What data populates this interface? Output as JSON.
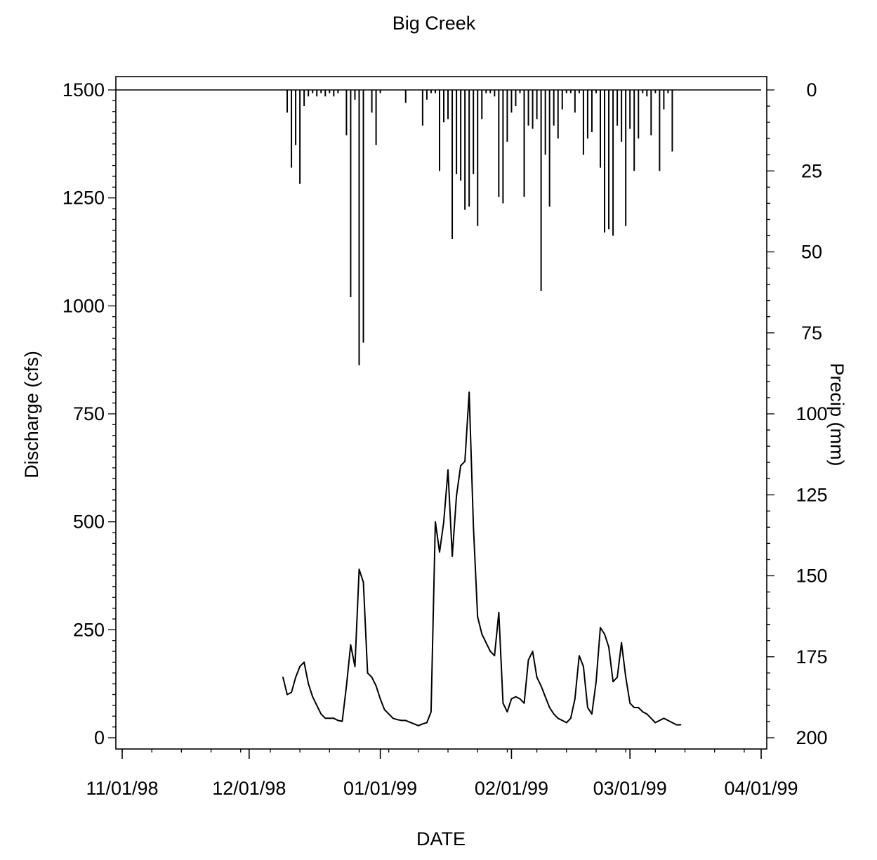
{
  "chart_data": {
    "type": "line",
    "title": "Big Creek",
    "xlabel": "DATE",
    "ylabel": "Discharge (cfs)",
    "y2label": "Precip (mm)",
    "xlim": [
      "1998-11-01",
      "1999-04-01"
    ],
    "ylim": [
      0,
      1500
    ],
    "y2lim": [
      200,
      0
    ],
    "y2_inverted": true,
    "grid": false,
    "x_ticks": [
      "11/01/98",
      "12/01/98",
      "01/01/99",
      "02/01/99",
      "03/01/99",
      "04/01/99"
    ],
    "x_tick_dates": [
      "1998-11-01",
      "1998-12-01",
      "1999-01-01",
      "1999-02-01",
      "1999-03-01",
      "1999-04-01"
    ],
    "y_ticks": [
      0,
      250,
      500,
      750,
      1000,
      1250,
      1500
    ],
    "y2_ticks": [
      0,
      25,
      50,
      75,
      100,
      125,
      150,
      175,
      200
    ],
    "series": [
      {
        "name": "Discharge (cfs)",
        "type": "line",
        "axis": "left",
        "color": "#000000",
        "dates": [
          "1998-12-09",
          "1998-12-10",
          "1998-12-11",
          "1998-12-12",
          "1998-12-13",
          "1998-12-14",
          "1998-12-15",
          "1998-12-16",
          "1998-12-17",
          "1998-12-18",
          "1998-12-19",
          "1998-12-20",
          "1998-12-21",
          "1998-12-22",
          "1998-12-23",
          "1998-12-24",
          "1998-12-25",
          "1998-12-26",
          "1998-12-27",
          "1998-12-28",
          "1998-12-29",
          "1998-12-30",
          "1998-12-31",
          "1999-01-01",
          "1999-01-02",
          "1999-01-03",
          "1999-01-04",
          "1999-01-05",
          "1999-01-06",
          "1999-01-07",
          "1999-01-08",
          "1999-01-09",
          "1999-01-10",
          "1999-01-11",
          "1999-01-12",
          "1999-01-13",
          "1999-01-14",
          "1999-01-15",
          "1999-01-16",
          "1999-01-17",
          "1999-01-18",
          "1999-01-19",
          "1999-01-20",
          "1999-01-21",
          "1999-01-22",
          "1999-01-23",
          "1999-01-24",
          "1999-01-25",
          "1999-01-26",
          "1999-01-27",
          "1999-01-28",
          "1999-01-29",
          "1999-01-30",
          "1999-01-31",
          "1999-02-01",
          "1999-02-02",
          "1999-02-03",
          "1999-02-04",
          "1999-02-05",
          "1999-02-06",
          "1999-02-07",
          "1999-02-08",
          "1999-02-09",
          "1999-02-10",
          "1999-02-11",
          "1999-02-12",
          "1999-02-13",
          "1999-02-14",
          "1999-02-15",
          "1999-02-16",
          "1999-02-17",
          "1999-02-18",
          "1999-02-19",
          "1999-02-20",
          "1999-02-21",
          "1999-02-22",
          "1999-02-23",
          "1999-02-24",
          "1999-02-25",
          "1999-02-26",
          "1999-02-27",
          "1999-02-28",
          "1999-03-01",
          "1999-03-02",
          "1999-03-03",
          "1999-03-04",
          "1999-03-05",
          "1999-03-06",
          "1999-03-07",
          "1999-03-08",
          "1999-03-09",
          "1999-03-10",
          "1999-03-11",
          "1999-03-12",
          "1999-03-13"
        ],
        "values": [
          140,
          100,
          105,
          140,
          165,
          175,
          125,
          95,
          75,
          55,
          45,
          45,
          45,
          40,
          38,
          120,
          215,
          165,
          390,
          360,
          150,
          140,
          120,
          90,
          65,
          55,
          45,
          42,
          40,
          40,
          36,
          32,
          28,
          32,
          35,
          60,
          500,
          430,
          500,
          620,
          420,
          560,
          630,
          640,
          800,
          490,
          280,
          240,
          220,
          200,
          190,
          290,
          80,
          60,
          90,
          95,
          90,
          80,
          180,
          200,
          140,
          120,
          95,
          70,
          55,
          45,
          40,
          35,
          45,
          90,
          190,
          165,
          70,
          55,
          130,
          255,
          240,
          210,
          130,
          140,
          220,
          140,
          80,
          70,
          70,
          60,
          55,
          45,
          35,
          40,
          45,
          40,
          35,
          30,
          30
        ]
      },
      {
        "name": "Precip (mm)",
        "type": "bar",
        "axis": "right",
        "color": "#000000",
        "dates": [
          "1998-12-10",
          "1998-12-11",
          "1998-12-12",
          "1998-12-13",
          "1998-12-14",
          "1998-12-15",
          "1998-12-16",
          "1998-12-17",
          "1998-12-18",
          "1998-12-19",
          "1998-12-20",
          "1998-12-21",
          "1998-12-22",
          "1998-12-24",
          "1998-12-25",
          "1998-12-26",
          "1998-12-27",
          "1998-12-28",
          "1998-12-30",
          "1998-12-31",
          "1999-01-01",
          "1999-01-07",
          "1999-01-11",
          "1999-01-12",
          "1999-01-13",
          "1999-01-14",
          "1999-01-15",
          "1999-01-16",
          "1999-01-17",
          "1999-01-18",
          "1999-01-19",
          "1999-01-20",
          "1999-01-21",
          "1999-01-22",
          "1999-01-23",
          "1999-01-24",
          "1999-01-25",
          "1999-01-26",
          "1999-01-27",
          "1999-01-28",
          "1999-01-29",
          "1999-01-30",
          "1999-01-31",
          "1999-02-01",
          "1999-02-02",
          "1999-02-03",
          "1999-02-04",
          "1999-02-05",
          "1999-02-06",
          "1999-02-07",
          "1999-02-08",
          "1999-02-09",
          "1999-02-10",
          "1999-02-11",
          "1999-02-12",
          "1999-02-13",
          "1999-02-14",
          "1999-02-15",
          "1999-02-16",
          "1999-02-17",
          "1999-02-18",
          "1999-02-19",
          "1999-02-20",
          "1999-02-21",
          "1999-02-22",
          "1999-02-23",
          "1999-02-24",
          "1999-02-25",
          "1999-02-26",
          "1999-02-27",
          "1999-02-28",
          "1999-03-01",
          "1999-03-02",
          "1999-03-03",
          "1999-03-04",
          "1999-03-05",
          "1999-03-06",
          "1999-03-07",
          "1999-03-08",
          "1999-03-09",
          "1999-03-10",
          "1999-03-11"
        ],
        "values": [
          7,
          24,
          17,
          29,
          5,
          2,
          1,
          2,
          1,
          2,
          1,
          2,
          1,
          14,
          64,
          3,
          85,
          78,
          7,
          17,
          1,
          4,
          11,
          3,
          1,
          1,
          25,
          10,
          9,
          46,
          26,
          28,
          37,
          36,
          26,
          42,
          9,
          1,
          1,
          2,
          33,
          35,
          16,
          7,
          5,
          1,
          33,
          11,
          12,
          9,
          62,
          20,
          36,
          11,
          15,
          6,
          1,
          1,
          7,
          1,
          20,
          15,
          13,
          1,
          24,
          44,
          43,
          45,
          11,
          16,
          42,
          12,
          25,
          15,
          1,
          2,
          14,
          1,
          25,
          6,
          1,
          19
        ]
      }
    ]
  }
}
